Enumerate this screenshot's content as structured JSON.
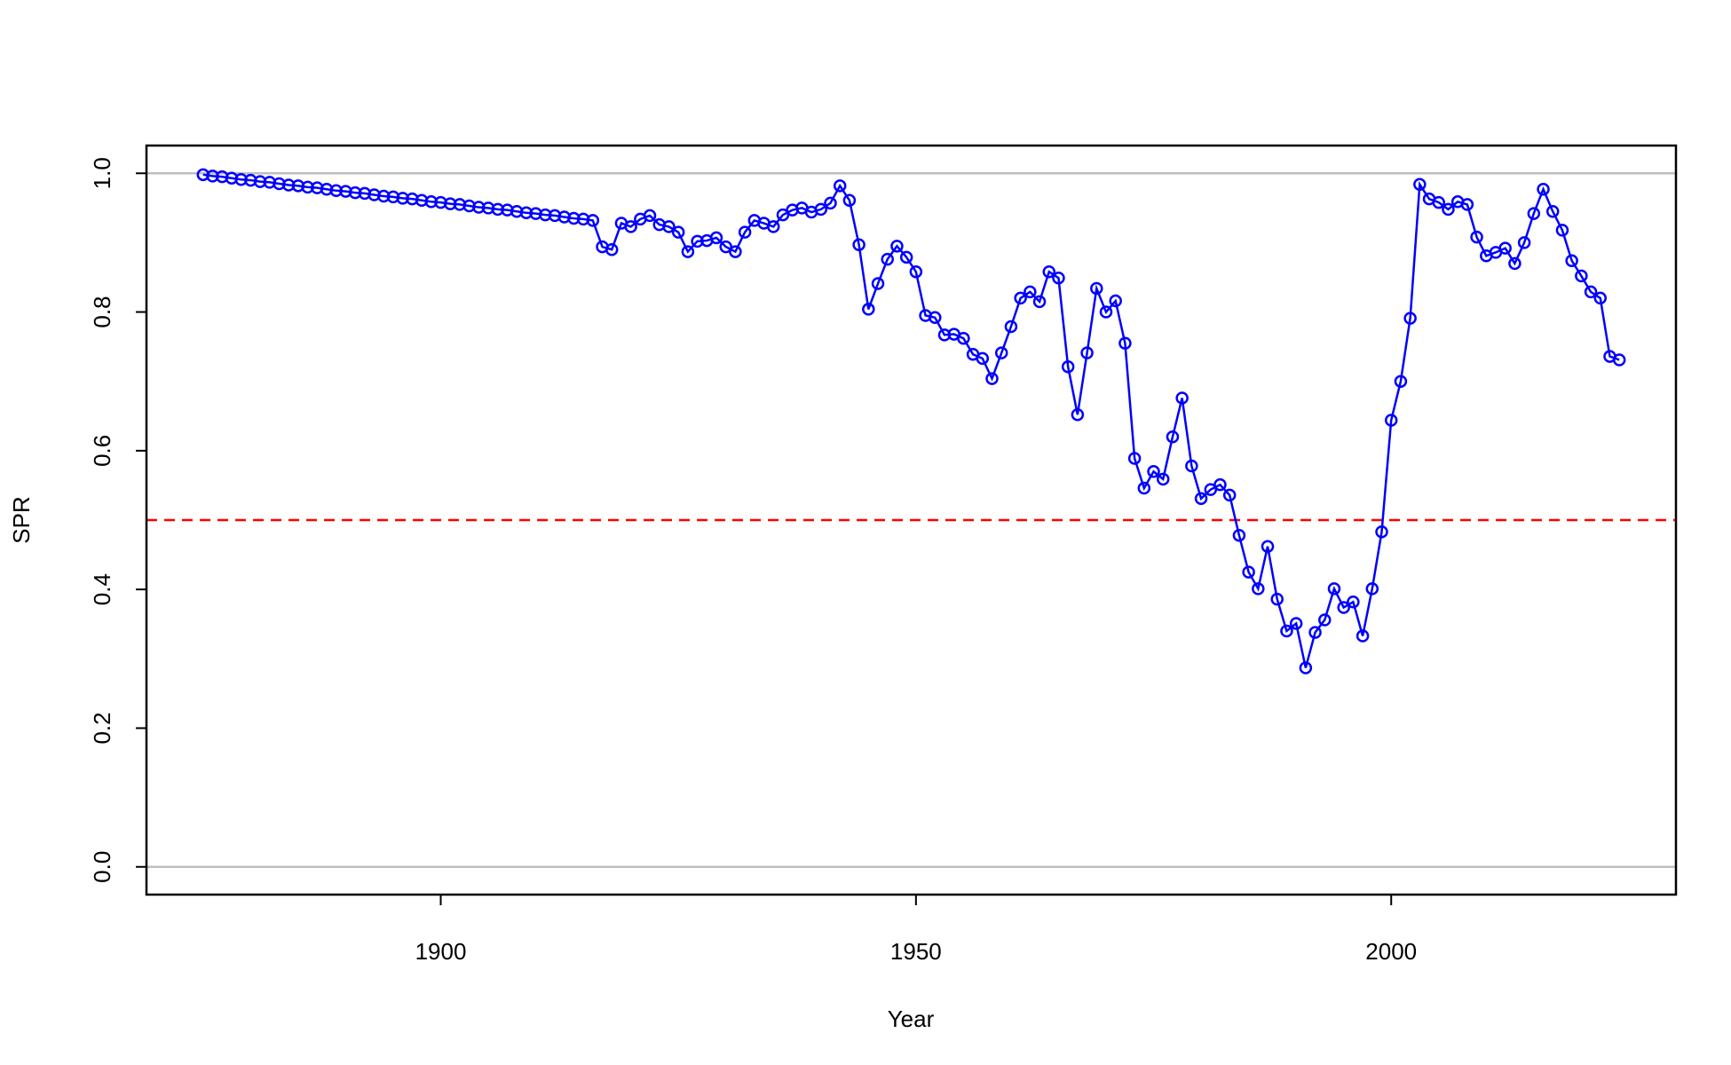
{
  "chart_data": {
    "type": "line",
    "xlabel": "Year",
    "ylabel": "SPR",
    "x": [
      1875,
      1876,
      1877,
      1878,
      1879,
      1880,
      1881,
      1882,
      1883,
      1884,
      1885,
      1886,
      1887,
      1888,
      1889,
      1890,
      1891,
      1892,
      1893,
      1894,
      1895,
      1896,
      1897,
      1898,
      1899,
      1900,
      1901,
      1902,
      1903,
      1904,
      1905,
      1906,
      1907,
      1908,
      1909,
      1910,
      1911,
      1912,
      1913,
      1914,
      1915,
      1916,
      1917,
      1918,
      1919,
      1920,
      1921,
      1922,
      1923,
      1924,
      1925,
      1926,
      1927,
      1928,
      1929,
      1930,
      1931,
      1932,
      1933,
      1934,
      1935,
      1936,
      1937,
      1938,
      1939,
      1940,
      1941,
      1942,
      1943,
      1944,
      1945,
      1946,
      1947,
      1948,
      1949,
      1950,
      1951,
      1952,
      1953,
      1954,
      1955,
      1956,
      1957,
      1958,
      1959,
      1960,
      1961,
      1962,
      1963,
      1964,
      1965,
      1966,
      1967,
      1968,
      1969,
      1970,
      1971,
      1972,
      1973,
      1974,
      1975,
      1976,
      1977,
      1978,
      1979,
      1980,
      1981,
      1982,
      1983,
      1984,
      1985,
      1986,
      1987,
      1988,
      1989,
      1990,
      1991,
      1992,
      1993,
      1994,
      1995,
      1996,
      1997,
      1998,
      1999,
      2000,
      2001,
      2002,
      2003,
      2004,
      2005,
      2006,
      2007,
      2008,
      2009,
      2010,
      2011,
      2012,
      2013,
      2014,
      2015,
      2016,
      2017,
      2018,
      2019,
      2020,
      2021,
      2022,
      2023,
      2024
    ],
    "series": [
      {
        "color": "#0000ff",
        "values": [
          0.998,
          0.996,
          0.995,
          0.993,
          0.991,
          0.99,
          0.988,
          0.987,
          0.985,
          0.983,
          0.982,
          0.98,
          0.979,
          0.977,
          0.975,
          0.974,
          0.972,
          0.971,
          0.969,
          0.967,
          0.966,
          0.964,
          0.963,
          0.961,
          0.959,
          0.958,
          0.956,
          0.955,
          0.953,
          0.951,
          0.95,
          0.948,
          0.947,
          0.945,
          0.943,
          0.942,
          0.94,
          0.939,
          0.937,
          0.935,
          0.934,
          0.932,
          0.894,
          0.89,
          0.928,
          0.923,
          0.934,
          0.939,
          0.926,
          0.923,
          0.915,
          0.887,
          0.902,
          0.903,
          0.907,
          0.894,
          0.887,
          0.915,
          0.932,
          0.928,
          0.923,
          0.94,
          0.947,
          0.95,
          0.944,
          0.948,
          0.957,
          0.982,
          0.961,
          0.897,
          0.804,
          0.841,
          0.876,
          0.895,
          0.879,
          0.858,
          0.795,
          0.792,
          0.767,
          0.768,
          0.762,
          0.739,
          0.733,
          0.704,
          0.741,
          0.779,
          0.82,
          0.829,
          0.815,
          0.858,
          0.849,
          0.721,
          0.652,
          0.741,
          0.834,
          0.8,
          0.816,
          0.755,
          0.589,
          0.546,
          0.57,
          0.559,
          0.62,
          0.676,
          0.578,
          0.531,
          0.544,
          0.551,
          0.536,
          0.478,
          0.425,
          0.401,
          0.462,
          0.386,
          0.34,
          0.351,
          0.287,
          0.338,
          0.356,
          0.401,
          0.374,
          0.382,
          0.333,
          0.401,
          0.483,
          0.644,
          0.7,
          0.791,
          0.984,
          0.963,
          0.958,
          0.948,
          0.959,
          0.955,
          0.908,
          0.881,
          0.886,
          0.892,
          0.87,
          0.9,
          0.942,
          0.977,
          0.945,
          0.918,
          0.874,
          0.852,
          0.829,
          0.82,
          0.736,
          0.731
        ]
      }
    ],
    "hlines": [
      {
        "value": 1,
        "color": "#bebebe",
        "dash": false
      },
      {
        "value": 0,
        "color": "#bebebe",
        "dash": false
      },
      {
        "value": 0.5,
        "color": "#ff0000",
        "dash": true
      }
    ],
    "xlim": [
      1869.04,
      2029.96
    ],
    "xticks": [
      1900,
      1950,
      2000
    ],
    "ylim": [
      -0.04,
      1.04
    ],
    "yticks": [
      {
        "value": 0,
        "label": "0.0"
      },
      0.2,
      0.4,
      0.6,
      0.8,
      {
        "value": 1,
        "label": "1.0"
      }
    ]
  }
}
